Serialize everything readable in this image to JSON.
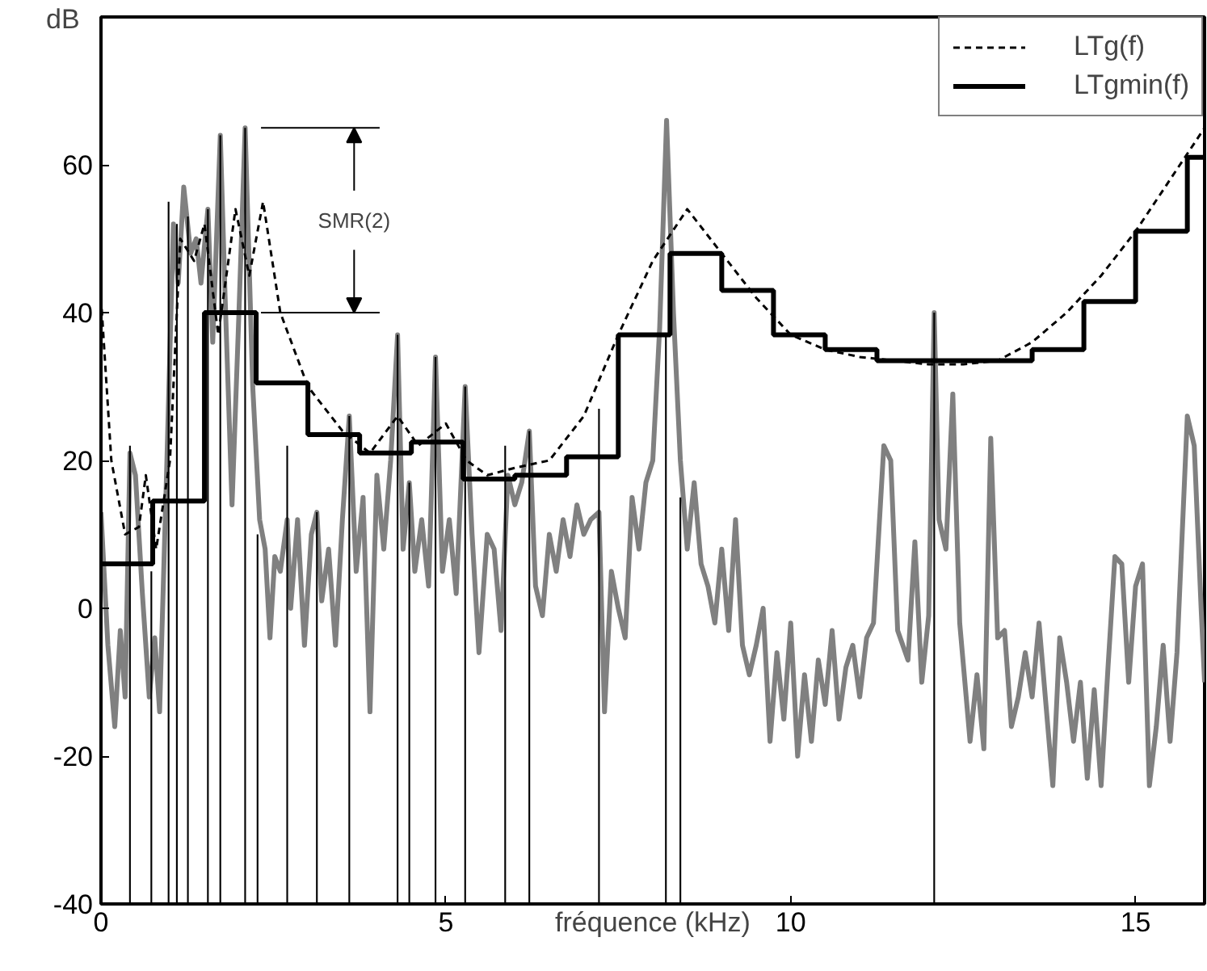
{
  "chart_data": {
    "type": "line",
    "xlabel": "fréquence (kHz)",
    "ylabel": "dB",
    "xlim": [
      0,
      16
    ],
    "ylim": [
      -40,
      80
    ],
    "xticks": [
      0,
      5,
      10,
      15
    ],
    "yticks": [
      -40,
      -20,
      0,
      20,
      40,
      60
    ],
    "grid": false,
    "legend": "top right",
    "annotations": [
      {
        "text": "SMR(2)",
        "x": 3.67,
        "y": 65
      }
    ],
    "ref_lines": [
      {
        "axis": "y",
        "value": 65
      },
      {
        "axis": "y",
        "value": 40
      }
    ],
    "series": [
      {
        "color": "#808080",
        "x": [
          0,
          0.1,
          0.2,
          0.28,
          0.35,
          0.42,
          0.5,
          0.6,
          0.7,
          0.78,
          0.85,
          0.95,
          1.05,
          1.12,
          1.2,
          1.3,
          1.38,
          1.45,
          1.55,
          1.62,
          1.73,
          1.8,
          1.9,
          2.0,
          2.09,
          2.2,
          2.3,
          2.38,
          2.45,
          2.52,
          2.6,
          2.7,
          2.75,
          2.85,
          2.95,
          3.05,
          3.13,
          3.2,
          3.3,
          3.4,
          3.5,
          3.6,
          3.7,
          3.8,
          3.9,
          4.0,
          4.1,
          4.2,
          4.3,
          4.38,
          4.47,
          4.55,
          4.65,
          4.75,
          4.85,
          4.95,
          5.05,
          5.15,
          5.28,
          5.38,
          5.48,
          5.6,
          5.7,
          5.8,
          5.9,
          6.0,
          6.1,
          6.21,
          6.3,
          6.4,
          6.5,
          6.6,
          6.7,
          6.8,
          6.9,
          7.0,
          7.1,
          7.22,
          7.3,
          7.4,
          7.5,
          7.6,
          7.7,
          7.8,
          7.9,
          8.0,
          8.1,
          8.2,
          8.3,
          8.4,
          8.5,
          8.6,
          8.7,
          8.8,
          8.9,
          9.0,
          9.1,
          9.2,
          9.3,
          9.4,
          9.5,
          9.6,
          9.7,
          9.8,
          9.9,
          10.0,
          10.1,
          10.2,
          10.3,
          10.4,
          10.5,
          10.6,
          10.7,
          10.8,
          10.9,
          11.0,
          11.1,
          11.2,
          11.35,
          11.45,
          11.55,
          11.7,
          11.8,
          11.9,
          12.0,
          12.08,
          12.15,
          12.25,
          12.35,
          12.45,
          12.6,
          12.7,
          12.8,
          12.9,
          13.0,
          13.1,
          13.2,
          13.3,
          13.4,
          13.5,
          13.6,
          13.7,
          13.8,
          13.9,
          14.0,
          14.1,
          14.2,
          14.3,
          14.4,
          14.5,
          14.6,
          14.7,
          14.8,
          14.9,
          15.0,
          15.1,
          15.2,
          15.3,
          15.4,
          15.5,
          15.6,
          15.75,
          15.85,
          15.95,
          16.0
        ],
        "values": [
          13,
          -5,
          -16,
          -3,
          -12,
          21,
          18,
          2,
          -12,
          -4,
          -14,
          18,
          52,
          44,
          57,
          48,
          50,
          44,
          54,
          36,
          64,
          42,
          14,
          40,
          65,
          30,
          12,
          8,
          -4,
          7,
          5,
          12,
          0,
          12,
          -5,
          10,
          13,
          1,
          8,
          -5,
          12,
          26,
          5,
          15,
          -14,
          18,
          8,
          20,
          37,
          8,
          17,
          5,
          12,
          3,
          34,
          5,
          12,
          2,
          30,
          10,
          -6,
          10,
          8,
          -3,
          18,
          14,
          17,
          24,
          3,
          -1,
          10,
          5,
          12,
          7,
          14,
          10,
          12,
          13,
          -14,
          5,
          0,
          -4,
          15,
          8,
          17,
          20,
          38,
          66,
          40,
          20,
          8,
          17,
          6,
          3,
          -2,
          8,
          -3,
          12,
          -5,
          -9,
          -5,
          0,
          -18,
          -6,
          -15,
          -2,
          -20,
          -9,
          -18,
          -7,
          -13,
          -3,
          -15,
          -8,
          -5,
          -12,
          -4,
          -2,
          22,
          20,
          -3,
          -7,
          9,
          -10,
          -1,
          40,
          12,
          8,
          29,
          -2,
          -18,
          -9,
          -19,
          23,
          -4,
          -3,
          -16,
          -12,
          -6,
          -12,
          -2,
          -13,
          -24,
          -4,
          -10,
          -18,
          -10,
          -23,
          -11,
          -24,
          -8,
          7,
          6,
          -10,
          3,
          6,
          -24,
          -16,
          -5,
          -18,
          -6,
          26,
          22,
          0,
          -10
        ]
      },
      {
        "type": "bar",
        "color": "#000000",
        "x": [
          0.42,
          0.73,
          0.98,
          1.1,
          1.26,
          1.55,
          1.73,
          2.09,
          2.27,
          2.7,
          3.13,
          3.6,
          4.3,
          4.47,
          4.85,
          5.28,
          5.86,
          6.21,
          7.22,
          8.19,
          8.4,
          12.08
        ],
        "base": [
          -40,
          -40,
          -40,
          -40,
          -40,
          -40,
          -40,
          -40,
          -40,
          -40,
          -40,
          -40,
          -40,
          -40,
          -40,
          -40,
          -40,
          -40,
          -40,
          -40,
          -40,
          -40
        ],
        "values": [
          62,
          45,
          95,
          92,
          93,
          94,
          104,
          105,
          50,
          62,
          53,
          66,
          77,
          57,
          74,
          70,
          62,
          64,
          67,
          77,
          55,
          80
        ]
      },
      {
        "name": "LTg(f)",
        "color": "#000000",
        "line_style": "dashed",
        "x": [
          0,
          0.15,
          0.35,
          0.55,
          0.65,
          0.8,
          1.0,
          1.15,
          1.35,
          1.5,
          1.7,
          1.95,
          2.15,
          2.35,
          2.6,
          3.0,
          3.5,
          3.9,
          4.3,
          4.6,
          5.0,
          5.3,
          5.6,
          6.0,
          6.5,
          7.0,
          7.5,
          8.0,
          8.5,
          9.0,
          9.5,
          10.0,
          10.5,
          11.0,
          11.5,
          12.0,
          12.5,
          13.0,
          13.5,
          14.0,
          14.5,
          15.0,
          15.5,
          16.0
        ],
        "values": [
          42,
          20,
          10,
          11,
          18,
          8,
          20,
          50,
          47,
          52,
          37,
          54,
          45,
          55,
          40,
          30,
          24,
          21,
          26,
          22,
          25,
          20,
          18,
          19,
          20,
          26,
          37,
          47,
          54,
          48,
          42,
          37,
          35,
          34,
          33.5,
          33,
          33,
          33.5,
          36,
          40,
          45,
          51,
          58,
          65
        ]
      },
      {
        "type": "step",
        "name": "LTgmin(f)",
        "color": "#000000",
        "x": [
          0,
          0.75,
          1.5,
          2.25,
          3.0,
          3.75,
          4.5,
          5.25,
          6.0,
          6.75,
          7.5,
          8.25,
          9.0,
          9.75,
          10.5,
          11.25,
          12.0,
          12.75,
          13.5,
          14.25,
          15.0,
          15.75,
          16.0
        ],
        "values": [
          6,
          14.5,
          40,
          30.5,
          23.5,
          21,
          22.5,
          17.5,
          18,
          20.5,
          37,
          48,
          43,
          37,
          35,
          33.5,
          33.5,
          33.5,
          35,
          41.5,
          51,
          61,
          61
        ]
      }
    ]
  }
}
